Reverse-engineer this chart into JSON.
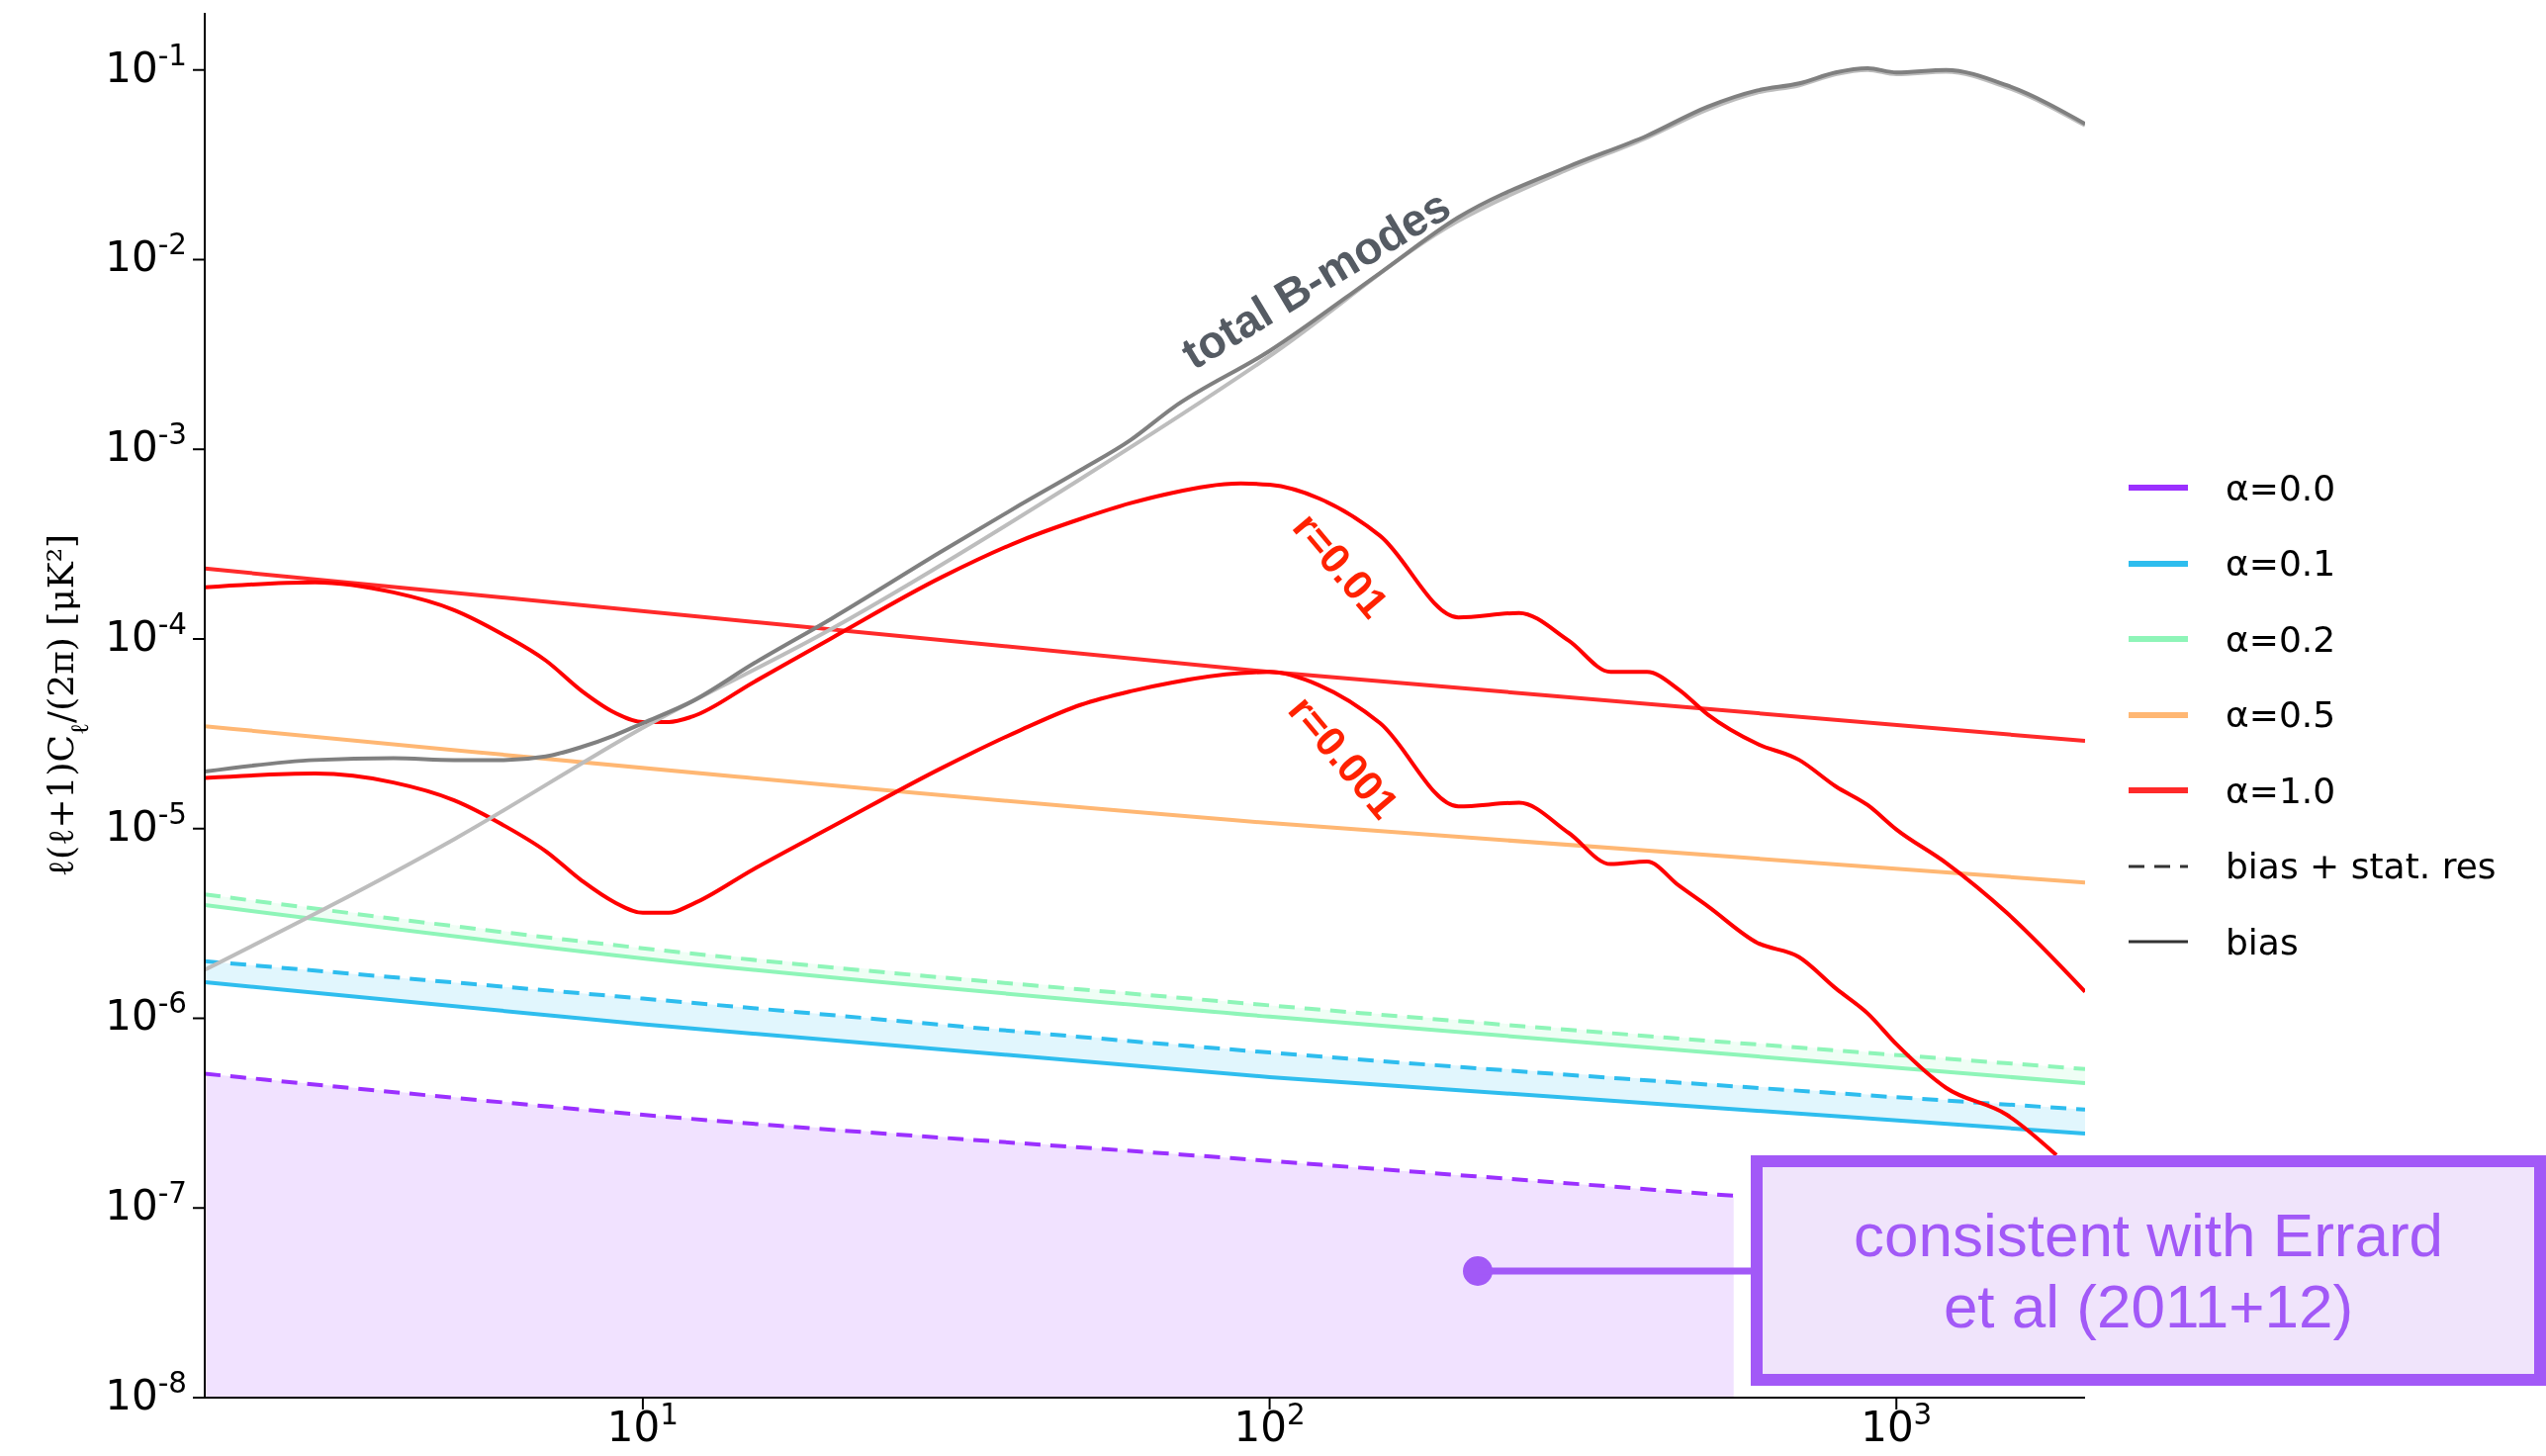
{
  "chart_data": {
    "type": "line",
    "ylabel": "ℓ(ℓ+1)C$_{ℓ}$/(2π) [μK²]",
    "log": "xy",
    "legend": "right",
    "xlim": [
      2,
      2000
    ],
    "xticks": [
      {
        "value": 10,
        "label": "10$^{1}$"
      },
      {
        "value": 100,
        "label": "10$^{2}$"
      },
      {
        "value": 1000,
        "label": "10$^{3}$"
      }
    ],
    "ylim": [
      1e-08,
      0.2
    ],
    "yticks": [
      {
        "value": 1e-08,
        "label": "10$^{-8}$"
      },
      {
        "value": 1e-07,
        "label": "10$^{-7}$"
      },
      {
        "value": 1e-06,
        "label": "10$^{-6}$"
      },
      {
        "value": 1e-05,
        "label": "10$^{-5}$"
      },
      {
        "value": 0.0001,
        "label": "10$^{-4}$"
      },
      {
        "value": 0.001,
        "label": "10$^{-3}$"
      },
      {
        "value": 0.01,
        "label": "10$^{-2}$"
      },
      {
        "value": 0.1,
        "label": "10$^{-1}$"
      }
    ],
    "series": [
      {
        "name": "α=0.0",
        "type": "area",
        "color": "#9b30ff",
        "line_style": "dashed",
        "x": [
          2,
          10,
          100,
          550
        ],
        "values": [
          5.1e-07,
          3.1e-07,
          1.77e-07,
          1.16e-07
        ]
      },
      {
        "name": "α=0.1",
        "color": "#2ebdee",
        "x": [
          2,
          10,
          100,
          2000
        ],
        "values": [
          1.55e-06,
          9.3e-07,
          4.9e-07,
          2.47e-07
        ]
      },
      {
        "color": "#2ebdee",
        "line_style": "dashed",
        "x": [
          2,
          10,
          100,
          2000
        ],
        "values": [
          2e-06,
          1.27e-06,
          6.6e-07,
          3.3e-07
        ],
        "lower": [
          1.55e-06,
          9.3e-07,
          4.9e-07,
          2.47e-07
        ],
        "upper": [
          2e-06,
          1.27e-06,
          6.6e-07,
          3.3e-07
        ]
      },
      {
        "name": "α=0.2",
        "color": "#8ef5b8",
        "x": [
          2,
          10,
          100,
          2000
        ],
        "values": [
          3.95e-06,
          2.07e-06,
          1.02e-06,
          4.55e-07
        ]
      },
      {
        "color": "#8ef5b8",
        "line_style": "dashed",
        "x": [
          2,
          10,
          100,
          2000
        ],
        "values": [
          4.5e-06,
          2.34e-06,
          1.17e-06,
          5.4e-07
        ],
        "lower": [
          3.95e-06,
          2.07e-06,
          1.02e-06,
          4.55e-07
        ],
        "upper": [
          4.5e-06,
          2.34e-06,
          1.17e-06,
          5.4e-07
        ]
      },
      {
        "name": "α=0.5",
        "color": "#ffb773",
        "x": [
          2,
          100,
          2000
        ],
        "values": [
          3.47e-05,
          1.07e-05,
          5.2e-06
        ]
      },
      {
        "name": "α=1.0",
        "color": "#ff2a2a",
        "x": [
          2,
          100,
          2000
        ],
        "values": [
          0.000235,
          6.7e-05,
          2.9e-05
        ]
      },
      {
        "color": "#ff0000",
        "x": [
          2,
          3,
          4,
          5,
          6,
          7,
          8,
          9,
          10,
          11,
          12,
          15,
          20,
          30,
          40,
          50,
          60,
          70,
          90,
          100,
          120,
          150,
          200,
          250,
          300,
          350,
          400,
          450,
          500,
          600,
          700,
          800,
          900,
          1000,
          1200,
          1500,
          2000
        ],
        "values": [
          0.000187,
          0.000199,
          0.000176,
          0.000142,
          0.000105,
          7.7e-05,
          5.3e-05,
          4.1e-05,
          3.65e-05,
          3.65e-05,
          3.9e-05,
          5.9e-05,
          0.000101,
          0.000212,
          0.000329,
          0.00043,
          0.00052,
          0.00059,
          0.00066,
          0.00065,
          0.00055,
          0.00035,
          0.00013,
          0.000137,
          9.8e-05,
          6.7e-05,
          6.7e-05,
          5.4e-05,
          4e-05,
          2.8e-05,
          2.3e-05,
          1.67e-05,
          1.33e-05,
          9.9e-06,
          6.6e-06,
          3.6e-06,
          1.38e-06
        ]
      },
      {
        "color": "#ff0000",
        "x": [
          2,
          3,
          4,
          5,
          6,
          7,
          8,
          9,
          10,
          11,
          12,
          15,
          20,
          30,
          40,
          50,
          60,
          70,
          90,
          100,
          120,
          150,
          200,
          250,
          300,
          350,
          400,
          450,
          500,
          600,
          700,
          800,
          900,
          1000,
          1200,
          1500,
          1800
        ],
        "values": [
          1.85e-05,
          1.95e-05,
          1.75e-05,
          1.41e-05,
          1.04e-05,
          7.6e-06,
          5.3e-06,
          4.1e-06,
          3.6e-06,
          3.6e-06,
          4e-06,
          6.1e-06,
          1.02e-05,
          2.09e-05,
          3.3e-05,
          4.5e-05,
          5.3e-05,
          5.9e-05,
          6.6e-05,
          6.7e-05,
          5.7e-05,
          3.6e-05,
          1.31e-05,
          1.37e-05,
          9.5e-06,
          6.5e-06,
          6.7e-06,
          5e-06,
          3.9e-06,
          2.5e-06,
          2.1e-06,
          1.44e-06,
          1.06e-06,
          7.3e-07,
          4.3e-07,
          3.1e-07,
          1.9e-07
        ]
      },
      {
        "color": "#bdbdbd",
        "x": [
          2,
          5,
          10,
          20,
          50,
          100,
          200,
          300,
          400,
          500,
          600,
          700,
          800,
          900,
          1000,
          1200,
          1500,
          2000
        ],
        "values": [
          1.8e-06,
          8.8e-06,
          3.4e-05,
          0.000113,
          0.0007,
          0.0031,
          0.016,
          0.03,
          0.044,
          0.062,
          0.076,
          0.083,
          0.095,
          0.1,
          0.095,
          0.098,
          0.081,
          0.051
        ]
      },
      {
        "color": "#808080",
        "x": [
          2,
          3,
          4,
          5,
          6,
          7,
          8,
          9,
          10,
          12,
          15,
          20,
          30,
          40,
          50,
          60,
          70,
          100,
          150,
          200,
          300,
          400,
          500,
          600,
          700,
          800,
          900,
          1000,
          1200,
          1500,
          2000
        ],
        "values": [
          2e-05,
          2.3e-05,
          2.35e-05,
          2.3e-05,
          2.3e-05,
          2.4e-05,
          2.7e-05,
          3.1e-05,
          3.6e-05,
          4.7e-05,
          7.4e-05,
          0.000128,
          0.00029,
          0.00051,
          0.00078,
          0.00112,
          0.00165,
          0.0033,
          0.0085,
          0.0167,
          0.031,
          0.045,
          0.064,
          0.078,
          0.085,
          0.097,
          0.102,
          0.097,
          0.1,
          0.083,
          0.052
        ]
      },
      {
        "name": "bias + stat. res",
        "color": "#333333",
        "line_style": "dashed"
      },
      {
        "name": "bias",
        "color": "#333333",
        "line_style": "solid"
      }
    ],
    "annotations": [
      "total B-modes",
      "r=0.01",
      "r=0.001",
      "consistent with Errard et al (2011+12)"
    ]
  }
}
